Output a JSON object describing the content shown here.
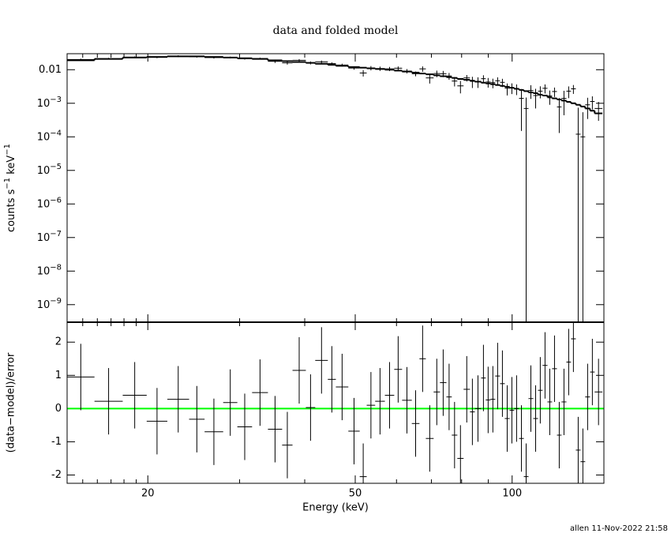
{
  "chart_data": [
    {
      "type": "spectrum",
      "title": "data and folded model",
      "ylabel": "counts s−1 keV−1",
      "xscale": "log",
      "yscale": "log",
      "xlim": [
        14,
        150
      ],
      "ylim": [
        3e-10,
        0.03
      ],
      "yticks": [
        {
          "value": 0.01,
          "label": "0.01"
        },
        {
          "value": 0.001,
          "label": "10−3"
        },
        {
          "value": 0.0001,
          "label": "10−4"
        },
        {
          "value": 1e-05,
          "label": "10−5"
        },
        {
          "value": 1e-06,
          "label": "10−6"
        },
        {
          "value": 1e-07,
          "label": "10−7"
        },
        {
          "value": 1e-08,
          "label": "10−8"
        },
        {
          "value": 1e-09,
          "label": "10−9"
        }
      ],
      "bins": [
        14,
        15.8,
        17.9,
        19.9,
        21.8,
        24.0,
        25.7,
        27.9,
        29.7,
        31.7,
        34.0,
        36.2,
        37.9,
        40.2,
        41.9,
        44.3,
        45.9,
        48.5,
        51.0,
        52.6,
        54.6,
        57.0,
        59.4,
        61.5,
        64.2,
        66.4,
        68.3,
        70.7,
        72.7,
        74.8,
        76.6,
        78.5,
        80.7,
        83.0,
        84.8,
        87.2,
        89.0,
        90.9,
        92.8,
        94.8,
        96.8,
        98.9,
        100.9,
        103.1,
        105.3,
        107.5,
        109.8,
        112.1,
        114.4,
        116.9,
        119.3,
        121.9,
        124.4,
        127.1,
        129.7,
        132.5,
        135.3,
        138.1,
        141.1,
        144.0,
        149
      ],
      "data": {
        "color": "#000000",
        "values": [
          0.0201,
          0.0213,
          0.0236,
          0.0235,
          0.0254,
          0.0245,
          0.023,
          0.0232,
          0.0213,
          0.0216,
          0.0178,
          0.016,
          0.019,
          0.016,
          0.0172,
          0.0152,
          0.0138,
          0.0112,
          0.008,
          0.0112,
          0.0108,
          0.0106,
          0.0111,
          0.0091,
          0.0076,
          0.0106,
          0.0057,
          0.0077,
          0.0076,
          0.0065,
          0.0046,
          0.0033,
          0.0057,
          0.0045,
          0.0044,
          0.0054,
          0.0043,
          0.0041,
          0.0047,
          0.0042,
          0.0028,
          0.0029,
          0.0027,
          0.0014,
          0.0007,
          0.0024,
          0.0017,
          0.0023,
          0.0028,
          0.00165,
          0.00224,
          0.00078,
          0.0014,
          0.0023,
          0.0027,
          0.00012,
          0.0001,
          0.0009,
          0.00113,
          0.0007
        ],
        "errors": [
          0.00114,
          0.00126,
          0.00138,
          0.00144,
          0.0015,
          0.0015,
          0.00144,
          0.00138,
          0.00132,
          0.00126,
          0.0019,
          0.0018,
          0.0017,
          0.0016,
          0.0015,
          0.0014,
          0.0013,
          0.0012,
          0.00173,
          0.00165,
          0.00158,
          0.0015,
          0.00141,
          0.00132,
          0.00123,
          0.00193,
          0.00183,
          0.0017,
          0.0016,
          0.0015,
          0.00143,
          0.00133,
          0.00125,
          0.00165,
          0.00154,
          0.00144,
          0.00137,
          0.0013,
          0.00123,
          0.00116,
          0.00109,
          0.00102,
          0.00095,
          0.00125,
          0.00078,
          0.00105,
          0.001,
          0.0009,
          0.00085,
          0.00075,
          0.0007,
          0.00065,
          0.00096,
          0.00088,
          0.0008,
          0.00062,
          0.00044,
          0.00056,
          0.00048,
          0.0004
        ]
      },
      "model": {
        "color": "#000000",
        "values": [
          0.019,
          0.021,
          0.023,
          0.024,
          0.025,
          0.025,
          0.024,
          0.023,
          0.022,
          0.021,
          0.019,
          0.018,
          0.017,
          0.016,
          0.015,
          0.014,
          0.013,
          0.012,
          0.0115,
          0.011,
          0.0105,
          0.01,
          0.0094,
          0.0088,
          0.0082,
          0.0077,
          0.0073,
          0.0068,
          0.0064,
          0.006,
          0.0057,
          0.0053,
          0.005,
          0.0047,
          0.0044,
          0.0041,
          0.0039,
          0.0037,
          0.0035,
          0.0033,
          0.0031,
          0.0029,
          0.0027,
          0.0025,
          0.0023,
          0.0021,
          0.002,
          0.0018,
          0.0017,
          0.0015,
          0.0014,
          0.0013,
          0.0012,
          0.0011,
          0.001,
          0.0009,
          0.0008,
          0.0007,
          0.0006,
          0.0005
        ]
      }
    },
    {
      "type": "residuals",
      "ylabel": "(data−model)/error",
      "xlabel": "Energy (keV)",
      "xscale": "log",
      "xlim": [
        14,
        150
      ],
      "ylim": [
        -2.25,
        2.6
      ],
      "xticks": [
        20,
        50,
        100
      ],
      "xminorticks": [
        15,
        16,
        17,
        18,
        19,
        30,
        40,
        60,
        70,
        80,
        90
      ],
      "yticks": [
        -2,
        -1,
        0,
        1,
        2
      ],
      "reference": {
        "value": 0,
        "color": "#00ff00"
      },
      "error": 1,
      "values": [
        0.95,
        0.22,
        0.4,
        -0.38,
        0.28,
        -0.32,
        -0.7,
        0.18,
        -0.55,
        0.48,
        -0.62,
        -1.1,
        1.15,
        0.03,
        1.45,
        0.88,
        0.65,
        -0.68,
        -2.05,
        0.1,
        0.22,
        0.4,
        1.18,
        0.25,
        -0.45,
        1.5,
        -0.9,
        0.5,
        0.78,
        0.35,
        -0.8,
        -1.5,
        0.58,
        -0.1,
        0.0,
        0.92,
        0.26,
        0.28,
        0.98,
        0.75,
        -0.3,
        -0.05,
        0.0,
        -0.9,
        -2.05,
        0.3,
        -0.3,
        0.55,
        1.3,
        0.2,
        1.2,
        -0.8,
        0.2,
        1.4,
        2.1,
        -1.25,
        -1.6,
        0.35,
        1.1,
        0.5
      ]
    }
  ],
  "footer": "allen 11-Nov-2022 21:58"
}
